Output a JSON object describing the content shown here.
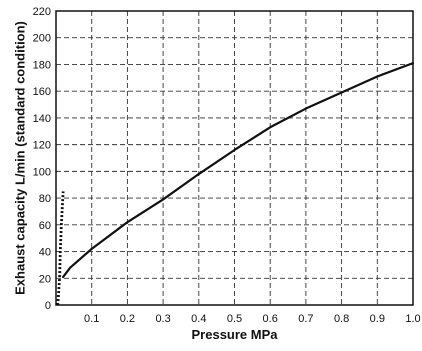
{
  "chart_data": {
    "type": "line",
    "title": "",
    "xlabel": "Pressure MPa",
    "ylabel": "Exhaust capacity L/min (standard condition)",
    "xlim": [
      0,
      1.0
    ],
    "ylim": [
      0,
      220
    ],
    "x_ticks": [
      0.1,
      0.2,
      0.3,
      0.4,
      0.5,
      0.6,
      0.7,
      0.8,
      0.9,
      1.0
    ],
    "x_tick_labels": [
      "0.1",
      "0.2",
      "0.3",
      "0.4",
      "0.5",
      "0.6",
      "0.7",
      "0.8",
      "0.9",
      "1.0"
    ],
    "y_ticks": [
      0,
      20,
      40,
      60,
      80,
      100,
      120,
      140,
      160,
      180,
      200,
      220
    ],
    "y_tick_labels": [
      "0",
      "20",
      "40",
      "60",
      "80",
      "100",
      "120",
      "140",
      "160",
      "180",
      "200",
      "220"
    ],
    "grid": true,
    "grid_style": "dashed",
    "series": [
      {
        "style": "dotted",
        "x": [
          0.005,
          0.01,
          0.012,
          0.015,
          0.018,
          0.02
        ],
        "y": [
          0,
          20,
          40,
          60,
          75,
          85
        ]
      },
      {
        "style": "solid",
        "x": [
          0.02,
          0.04,
          0.1,
          0.2,
          0.3,
          0.4,
          0.5,
          0.6,
          0.7,
          0.8,
          0.9,
          1.0
        ],
        "y": [
          21,
          28,
          42,
          62,
          79,
          98,
          116,
          133,
          147,
          159,
          171,
          181
        ]
      }
    ],
    "colors": {
      "line": "#111111",
      "grid": "#333333",
      "axis": "#111111"
    }
  }
}
